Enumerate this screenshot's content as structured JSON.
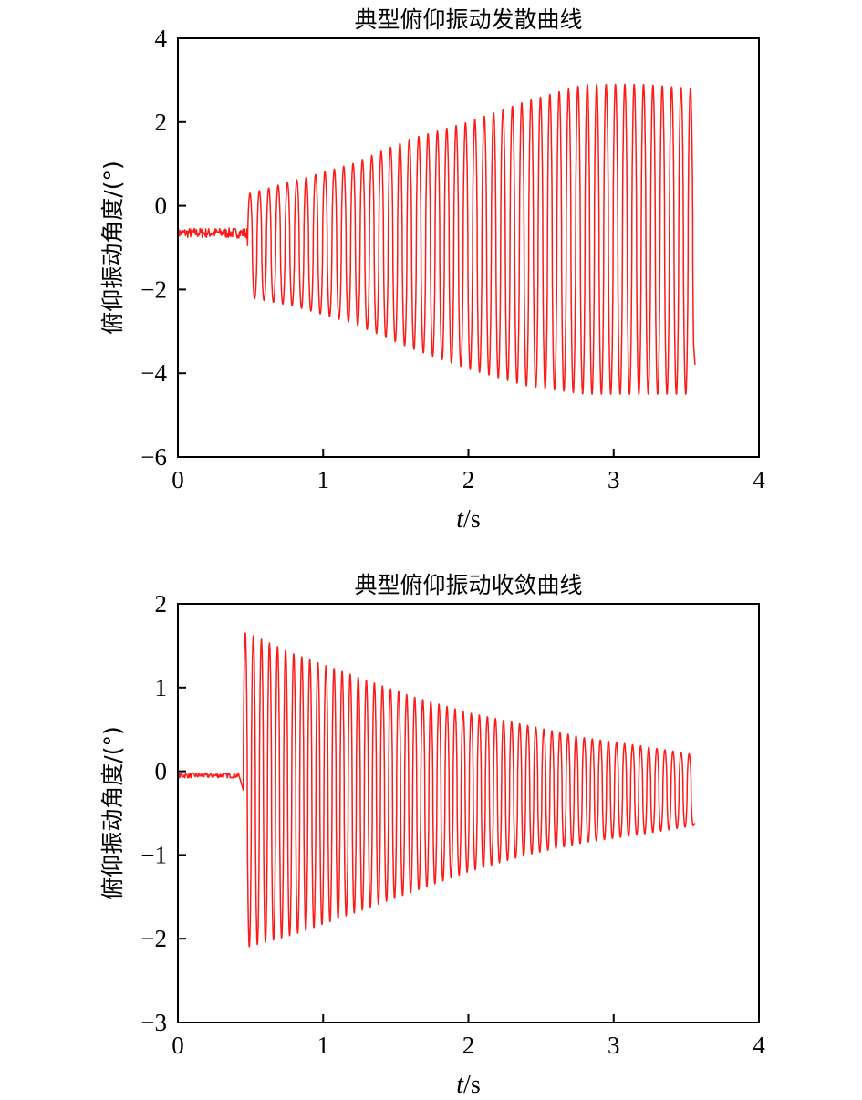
{
  "chart_data": [
    {
      "type": "line",
      "title": "典型俯仰振动发散曲线",
      "ylabel": "俯仰振动角度/(°)",
      "xlabel_italic": "t",
      "xlabel_unit": "/s",
      "xlim": [
        0,
        4
      ],
      "ylim": [
        -6,
        4
      ],
      "xticks": [
        "0",
        "1",
        "2",
        "3",
        "4"
      ],
      "yticks": [
        "4",
        "2",
        "0",
        "−2",
        "−4",
        "−6"
      ],
      "grid": false,
      "series": [
        {
          "color": "#ff1a1a",
          "quiet": {
            "t_start": 0.0,
            "t_end": 0.48,
            "mean": -0.65,
            "noise": 0.12
          },
          "oscillation": {
            "t_start": 0.48,
            "t_end": 3.55,
            "frequency_hz": 15.5,
            "peak_envelope": [
              [
                0.5,
                0.3
              ],
              [
                0.8,
                0.6
              ],
              [
                1.2,
                1.0
              ],
              [
                1.6,
                1.6
              ],
              [
                2.0,
                2.0
              ],
              [
                2.4,
                2.5
              ],
              [
                2.8,
                2.9
              ],
              [
                3.2,
                2.9
              ],
              [
                3.55,
                2.8
              ]
            ],
            "trough_envelope": [
              [
                0.5,
                -2.2
              ],
              [
                0.8,
                -2.4
              ],
              [
                1.2,
                -2.8
              ],
              [
                1.6,
                -3.4
              ],
              [
                2.0,
                -3.9
              ],
              [
                2.4,
                -4.3
              ],
              [
                2.8,
                -4.5
              ],
              [
                3.2,
                -4.5
              ],
              [
                3.55,
                -4.5
              ]
            ],
            "end_value": -3.8
          }
        }
      ]
    },
    {
      "type": "line",
      "title": "典型俯仰振动收敛曲线",
      "ylabel": "俯仰振动角度/(°)",
      "xlabel_italic": "t",
      "xlabel_unit": "/s",
      "xlim": [
        0,
        4
      ],
      "ylim": [
        -3,
        2
      ],
      "xticks": [
        "0",
        "1",
        "2",
        "3",
        "4"
      ],
      "yticks": [
        "2",
        "1",
        "0",
        "−1",
        "−2",
        "−3"
      ],
      "grid": false,
      "series": [
        {
          "color": "#ff1a1a",
          "quiet": {
            "t_start": 0.0,
            "t_end": 0.42,
            "mean": -0.05,
            "noise": 0.03
          },
          "oscillation": {
            "t_start": 0.45,
            "t_end": 3.55,
            "frequency_hz": 18.0,
            "peak_envelope": [
              [
                0.48,
                1.65
              ],
              [
                0.8,
                1.4
              ],
              [
                1.2,
                1.15
              ],
              [
                1.6,
                0.9
              ],
              [
                2.0,
                0.7
              ],
              [
                2.4,
                0.55
              ],
              [
                2.8,
                0.4
              ],
              [
                3.2,
                0.3
              ],
              [
                3.55,
                0.2
              ]
            ],
            "trough_envelope": [
              [
                0.48,
                -2.1
              ],
              [
                0.8,
                -1.95
              ],
              [
                1.2,
                -1.7
              ],
              [
                1.6,
                -1.45
              ],
              [
                2.0,
                -1.2
              ],
              [
                2.4,
                -1.0
              ],
              [
                2.8,
                -0.85
              ],
              [
                3.2,
                -0.75
              ],
              [
                3.55,
                -0.65
              ]
            ],
            "end_value": -0.62
          }
        }
      ]
    }
  ]
}
